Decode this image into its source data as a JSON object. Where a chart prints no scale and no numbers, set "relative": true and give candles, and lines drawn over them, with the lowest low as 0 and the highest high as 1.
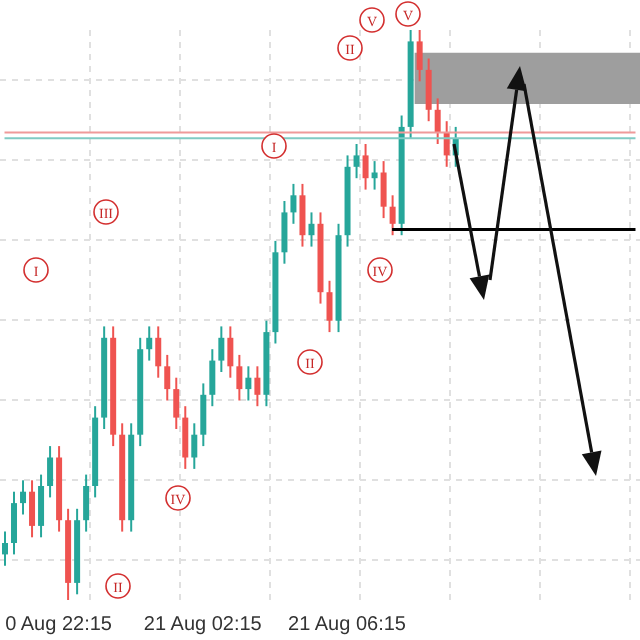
{
  "chart_data": {
    "type": "candlestick",
    "relative": true,
    "grid": true,
    "categories": [
      null,
      null,
      null,
      null,
      null,
      null,
      "0 Aug 22:15",
      null,
      null,
      null,
      null,
      null,
      null,
      null,
      null,
      null,
      null,
      null,
      null,
      null,
      null,
      null,
      "21 Aug 02:15",
      null,
      null,
      null,
      null,
      null,
      null,
      null,
      null,
      null,
      null,
      null,
      null,
      null,
      null,
      null,
      "21 Aug 06:15",
      null,
      null,
      null,
      null,
      null,
      null,
      null,
      null,
      null,
      null,
      null,
      null,
      null,
      null,
      null,
      null,
      null,
      null,
      null,
      null,
      null,
      null,
      null,
      null,
      null,
      null,
      null,
      null,
      null,
      null,
      null,
      null
    ],
    "ohlc": [
      [
        0.08,
        0.12,
        0.06,
        0.1
      ],
      [
        0.1,
        0.19,
        0.08,
        0.17
      ],
      [
        0.17,
        0.21,
        0.15,
        0.19
      ],
      [
        0.19,
        0.21,
        0.11,
        0.13
      ],
      [
        0.13,
        0.22,
        0.11,
        0.2
      ],
      [
        0.2,
        0.27,
        0.18,
        0.25
      ],
      [
        0.25,
        0.27,
        0.12,
        0.14
      ],
      [
        0.14,
        0.16,
        0,
        0.03
      ],
      [
        0.03,
        0.16,
        0.01,
        0.14
      ],
      [
        0.14,
        0.22,
        0.12,
        0.2
      ],
      [
        0.2,
        0.34,
        0.18,
        0.32
      ],
      [
        0.32,
        0.48,
        0.3,
        0.46
      ],
      [
        0.46,
        0.48,
        0.27,
        0.29
      ],
      [
        0.29,
        0.31,
        0.12,
        0.14
      ],
      [
        0.14,
        0.31,
        0.12,
        0.29
      ],
      [
        0.29,
        0.46,
        0.27,
        0.44
      ],
      [
        0.44,
        0.48,
        0.42,
        0.46
      ],
      [
        0.46,
        0.48,
        0.39,
        0.41
      ],
      [
        0.41,
        0.43,
        0.35,
        0.37
      ],
      [
        0.37,
        0.39,
        0.3,
        0.32
      ],
      [
        0.32,
        0.34,
        0.23,
        0.25
      ],
      [
        0.25,
        0.31,
        0.23,
        0.29
      ],
      [
        0.29,
        0.38,
        0.27,
        0.36
      ],
      [
        0.36,
        0.44,
        0.34,
        0.42
      ],
      [
        0.42,
        0.48,
        0.4,
        0.46
      ],
      [
        0.46,
        0.48,
        0.39,
        0.41
      ],
      [
        0.41,
        0.43,
        0.35,
        0.37
      ],
      [
        0.37,
        0.41,
        0.35,
        0.39
      ],
      [
        0.39,
        0.41,
        0.34,
        0.36
      ],
      [
        0.36,
        0.49,
        0.34,
        0.47
      ],
      [
        0.47,
        0.63,
        0.45,
        0.61
      ],
      [
        0.61,
        0.7,
        0.59,
        0.68
      ],
      [
        0.68,
        0.73,
        0.66,
        0.71
      ],
      [
        0.71,
        0.73,
        0.62,
        0.64
      ],
      [
        0.64,
        0.68,
        0.62,
        0.66
      ],
      [
        0.66,
        0.68,
        0.52,
        0.54
      ],
      [
        0.54,
        0.56,
        0.47,
        0.49
      ],
      [
        0.49,
        0.66,
        0.47,
        0.64
      ],
      [
        0.64,
        0.78,
        0.62,
        0.76
      ],
      [
        0.76,
        0.8,
        0.74,
        0.78
      ],
      [
        0.78,
        0.8,
        0.72,
        0.74
      ],
      [
        0.74,
        0.77,
        0.72,
        0.75
      ],
      [
        0.75,
        0.77,
        0.67,
        0.69
      ],
      [
        0.69,
        0.71,
        0.64,
        0.66
      ],
      [
        0.66,
        0.85,
        0.64,
        0.83
      ],
      [
        0.83,
        1,
        0.81,
        0.98
      ],
      [
        0.98,
        1,
        0.91,
        0.93
      ],
      [
        0.93,
        0.95,
        0.84,
        0.86
      ],
      [
        0.86,
        0.88,
        0.8,
        0.82
      ],
      [
        0.82,
        0.84,
        0.76,
        0.78
      ],
      [
        0.78,
        0.83,
        0.76,
        0.81
      ],
      null,
      null,
      null,
      null,
      null,
      null,
      null,
      null,
      null,
      null,
      null,
      null,
      null,
      null,
      null,
      null,
      null,
      null,
      null,
      null
    ],
    "colors": [
      "#26a69a",
      "#26a69a",
      "#26a69a",
      "#ef5350",
      "#26a69a",
      "#26a69a",
      "#ef5350",
      "#ef5350",
      "#26a69a",
      "#26a69a",
      "#26a69a",
      "#26a69a",
      "#ef5350",
      "#ef5350",
      "#26a69a",
      "#26a69a",
      "#26a69a",
      "#ef5350",
      "#ef5350",
      "#ef5350",
      "#ef5350",
      "#26a69a",
      "#26a69a",
      "#26a69a",
      "#26a69a",
      "#ef5350",
      "#ef5350",
      "#26a69a",
      "#ef5350",
      "#26a69a",
      "#26a69a",
      "#26a69a",
      "#26a69a",
      "#ef5350",
      "#26a69a",
      "#ef5350",
      "#ef5350",
      "#26a69a",
      "#26a69a",
      "#26a69a",
      "#ef5350",
      "#26a69a",
      "#ef5350",
      "#ef5350",
      "#26a69a",
      "#26a69a",
      "#ef5350",
      "#ef5350",
      "#ef5350",
      "#ef5350",
      "#26a69a",
      null,
      null,
      null,
      null,
      null,
      null,
      null,
      null,
      null,
      null,
      null,
      null,
      null,
      null,
      null,
      null,
      null,
      null,
      null,
      null
    ],
    "ref_lines": [
      {
        "axis": "y",
        "value": 0.81,
        "color": "#80cbc4"
      },
      {
        "axis": "y",
        "value": 0.82,
        "color": "#ef9a9a"
      },
      {
        "axis": "y",
        "value": 0.65,
        "color": "#000000"
      }
    ],
    "bands": [
      {
        "axis": "y",
        "from": 0.87,
        "to": 0.96,
        "color": "#9e9e9e"
      }
    ],
    "annotations": [
      "I",
      "III",
      "I",
      "II",
      "V",
      "V",
      "IV",
      "II",
      "IV",
      "II"
    ]
  }
}
